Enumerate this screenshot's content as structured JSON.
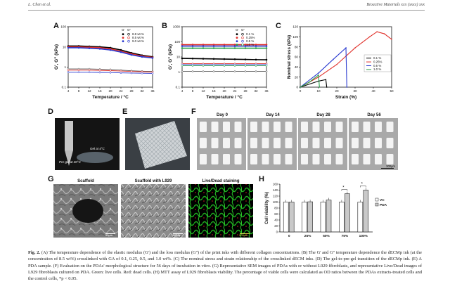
{
  "header": {
    "left": "L. Chen et al.",
    "right": "Bioactive Materials xxx (xxxx) xxx"
  },
  "figure": {
    "panel_letters": [
      "A",
      "B",
      "C",
      "D",
      "E",
      "F",
      "G",
      "H"
    ],
    "photo_labels": {
      "d_gel": "Gel at 4°C",
      "d_pregel": "Pre-gel at 20°C",
      "f_days": [
        "Day 0",
        "Day 14",
        "Day 28",
        "Day 56"
      ],
      "f_scale": "300μm",
      "g_titles": [
        "Scaffold",
        "Scaffold with L929",
        "Live/Dead staining"
      ],
      "g_scales": [
        "50μm",
        "50μm",
        "200μm"
      ]
    }
  },
  "chart_data": [
    {
      "type": "line",
      "panel": "A",
      "xlabel": "Temperature / °C",
      "ylabel": "G', G'' (kPa)",
      "xlim": [
        4,
        36
      ],
      "ylim": [
        0.1,
        100
      ],
      "yscale": "log",
      "x_ticks": [
        "4",
        "8",
        "12",
        "16",
        "20",
        "24",
        "28",
        "32",
        "36"
      ],
      "y_ticks": [
        "0.1",
        "1",
        "10",
        "100"
      ],
      "legend_header": [
        "G'",
        "G''"
      ],
      "legend_position": "top-right",
      "x": [
        4,
        8,
        12,
        16,
        20,
        24,
        28,
        32,
        36
      ],
      "series": [
        {
          "name": "8.8 wt.%",
          "modulus": "G'",
          "values": [
            11,
            11,
            10.5,
            10,
            9,
            7,
            5,
            3.8,
            3.2
          ],
          "color": "#000000"
        },
        {
          "name": "8.5 wt.%",
          "modulus": "G'",
          "values": [
            10,
            10,
            9.5,
            9,
            8,
            6,
            4.5,
            3.5,
            3.0
          ],
          "color": "#e0302a"
        },
        {
          "name": "9.0 wt.%",
          "modulus": "G'",
          "values": [
            9,
            9,
            8.5,
            8,
            7,
            5.5,
            4,
            3.2,
            2.8
          ],
          "color": "#2a3ad0"
        },
        {
          "name": "8.8 wt.%",
          "modulus": "G''",
          "values": [
            0.8,
            0.8,
            0.8,
            0.78,
            0.75,
            0.7,
            0.65,
            0.62,
            0.6
          ],
          "color": "#555555"
        },
        {
          "name": "8.5 wt.%",
          "modulus": "G''",
          "values": [
            0.7,
            0.7,
            0.7,
            0.68,
            0.66,
            0.63,
            0.6,
            0.58,
            0.56
          ],
          "color": "#e0302a"
        },
        {
          "name": "9.0 wt.%",
          "modulus": "G''",
          "values": [
            0.55,
            0.55,
            0.55,
            0.54,
            0.53,
            0.51,
            0.5,
            0.49,
            0.48
          ],
          "color": "#2a3ad0"
        }
      ]
    },
    {
      "type": "line",
      "panel": "B",
      "xlabel": "Temperature / °C",
      "ylabel": "G', G'' (kPa)",
      "xlim": [
        4,
        36
      ],
      "ylim": [
        0.1,
        1000
      ],
      "yscale": "log",
      "x_ticks": [
        "4",
        "8",
        "12",
        "16",
        "20",
        "24",
        "28",
        "32",
        "36"
      ],
      "y_ticks": [
        "0.1",
        "1",
        "10",
        "100",
        "1000"
      ],
      "legend_header": [
        "G'",
        "G''"
      ],
      "legend_position": "top-right",
      "x": [
        4,
        8,
        12,
        16,
        20,
        24,
        28,
        32,
        36
      ],
      "series": [
        {
          "name": "0.1 %",
          "modulus": "G'",
          "values": [
            8,
            7.8,
            7.6,
            7.4,
            7.2,
            7.0,
            6.8,
            6.6,
            6.5
          ],
          "color": "#000000"
        },
        {
          "name": "0.25%",
          "modulus": "G'",
          "values": [
            65,
            65,
            65,
            65,
            65,
            65,
            65,
            65,
            65
          ],
          "color": "#e0302a"
        },
        {
          "name": "0.5 %",
          "modulus": "G'",
          "values": [
            52,
            52,
            52,
            52,
            52,
            52,
            52,
            52,
            52
          ],
          "color": "#2a3ad0"
        },
        {
          "name": "1.0 %",
          "modulus": "G'",
          "values": [
            38,
            38,
            38,
            38,
            38,
            38,
            38,
            38,
            38
          ],
          "color": "#2aa04a"
        },
        {
          "name": "0.1 %",
          "modulus": "G''",
          "values": [
            1.1,
            1.1,
            1.1,
            1.1,
            1.1,
            1.1,
            1.1,
            1.1,
            1.1
          ],
          "color": "#555555"
        },
        {
          "name": "0.25%",
          "modulus": "G''",
          "values": [
            3.6,
            3.6,
            3.6,
            3.6,
            3.6,
            3.6,
            3.6,
            3.6,
            3.6
          ],
          "color": "#e0302a"
        },
        {
          "name": "0.5 %",
          "modulus": "G''",
          "values": [
            3.1,
            3.1,
            3.1,
            3.1,
            3.1,
            3.1,
            3.1,
            3.1,
            3.1
          ],
          "color": "#2a3ad0"
        },
        {
          "name": "1.0 %",
          "modulus": "G''",
          "values": [
            2.6,
            2.6,
            2.6,
            2.6,
            2.6,
            2.6,
            2.6,
            2.6,
            2.6
          ],
          "color": "#2aa04a"
        }
      ]
    },
    {
      "type": "line",
      "panel": "C",
      "xlabel": "Strain (%)",
      "ylabel": "Nominal stress (kPa)",
      "xlim": [
        0,
        50
      ],
      "ylim": [
        0,
        120
      ],
      "x_ticks": [
        "0",
        "10",
        "20",
        "30",
        "40",
        "50"
      ],
      "y_ticks": [
        "0",
        "20",
        "40",
        "60",
        "80",
        "100",
        "120"
      ],
      "legend_position": "right",
      "series": [
        {
          "name": "0.1 %",
          "color": "#000000",
          "points": [
            [
              0,
              0
            ],
            [
              10,
              12
            ],
            [
              14,
              15
            ],
            [
              14.5,
              0
            ]
          ]
        },
        {
          "name": "0.25%",
          "color": "#e0302a",
          "points": [
            [
              0,
              0
            ],
            [
              10,
              20
            ],
            [
              20,
              45
            ],
            [
              30,
              78
            ],
            [
              38,
              100
            ],
            [
              42,
              110
            ],
            [
              46,
              106
            ],
            [
              50,
              95
            ]
          ]
        },
        {
          "name": "0.5 %",
          "color": "#2a3ad0",
          "points": [
            [
              0,
              0
            ],
            [
              10,
              28
            ],
            [
              18,
              55
            ],
            [
              25,
              78
            ],
            [
              25.5,
              0
            ]
          ]
        },
        {
          "name": "1.0 %",
          "color": "#2aa04a",
          "points": [
            [
              0,
              0
            ],
            [
              5,
              10
            ],
            [
              10,
              24
            ],
            [
              10.5,
              0
            ]
          ]
        }
      ]
    },
    {
      "type": "bar",
      "panel": "H",
      "ylabel": "Cell viability (%)",
      "ylim": [
        0,
        160
      ],
      "y_ticks": [
        "0",
        "20",
        "40",
        "60",
        "80",
        "100",
        "120",
        "140",
        "160"
      ],
      "categories": [
        "0",
        "25%",
        "50%",
        "75%",
        "100%"
      ],
      "legend_position": "right",
      "series": [
        {
          "name": "VC",
          "values": [
            100,
            100,
            100,
            100,
            100
          ],
          "color": "#ffffff"
        },
        {
          "name": "PDA",
          "values": [
            100,
            101,
            107,
            128,
            140
          ],
          "color": "#c9c9c9"
        }
      ],
      "annotations": [
        "*",
        "*"
      ]
    }
  ],
  "caption": {
    "label": "Fig. 2.",
    "text": " (A) The temperature dependence of the elastic modulus (G') and the loss modulus (G'') of the print inks with different collagen concentrations. (B) The G' and G'' temperature dependence the dECMp ink (at the concentration of 8.5 wt%) crosslinked with GA of 0.1, 0.25, 0.5, and 1.0 wt%. (C) The nominal stress and strain relationship of the crosslinked dECM inks. (D) The gel-to-pre-gel transition of the dECMp ink. (E) A PDA sample. (F) Evaluation on the PDAs' morphological structure for 56 days of incubation in vitro. (G) Representative SEM images of PDAs with or without L929 fibroblasts, and representative Live/Dead images of L929 fibroblasts cultured on PDA. Green: live cells. Red: dead cells. (H) MTT assay of L929 fibroblasts viability. The percentage of viable cells were calculated as OD ratios between the PDAs extracts-treated cells and the control cells, *p < 0.05."
  },
  "colors": {
    "green_stain": "#1fae1f",
    "sem_gray": "#8a8a8a",
    "photo_dark": "#1a1a1a"
  }
}
